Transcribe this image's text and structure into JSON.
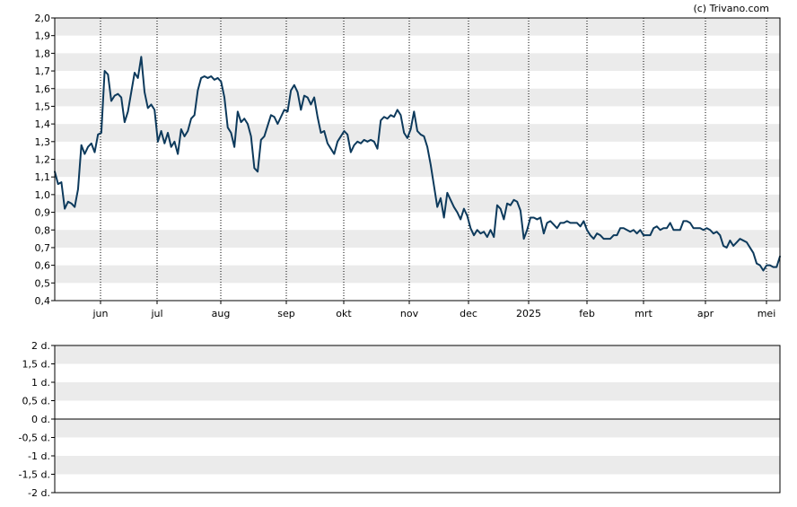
{
  "credit": "(c) Trivano.com",
  "colors": {
    "line": "#0d3a5c",
    "band": "#ebebeb",
    "grid": "#000000",
    "frame": "#000000"
  },
  "chart_data": [
    {
      "type": "line",
      "ylim": [
        0.4,
        2.0
      ],
      "y_ticks": [
        "2,0",
        "1,9",
        "1,8",
        "1,7",
        "1,6",
        "1,5",
        "1,4",
        "1,3",
        "1,2",
        "1,1",
        "1,0",
        "0,9",
        "0,8",
        "0,7",
        "0,6",
        "0,5",
        "0,4"
      ],
      "x_ticks": [
        "jun",
        "jul",
        "aug",
        "sep",
        "okt",
        "nov",
        "dec",
        "2025",
        "feb",
        "mrt",
        "apr",
        "mei"
      ],
      "grid": "vertical dotted at month starts, horizontal alternating bands",
      "series": [
        {
          "values": [
            1.13,
            1.06,
            1.07,
            0.92,
            0.96,
            0.95,
            0.93,
            1.03,
            1.28,
            1.23,
            1.27,
            1.29,
            1.24,
            1.34,
            1.35,
            1.7,
            1.68,
            1.53,
            1.56,
            1.57,
            1.55,
            1.41,
            1.47,
            1.58,
            1.69,
            1.66,
            1.78,
            1.58,
            1.49,
            1.51,
            1.48,
            1.3,
            1.36,
            1.29,
            1.35,
            1.27,
            1.3,
            1.23,
            1.37,
            1.33,
            1.36,
            1.43,
            1.45,
            1.59,
            1.66,
            1.67,
            1.66,
            1.67,
            1.65,
            1.66,
            1.64,
            1.55,
            1.38,
            1.35,
            1.27,
            1.47,
            1.41,
            1.43,
            1.4,
            1.33,
            1.15,
            1.13,
            1.31,
            1.33,
            1.39,
            1.45,
            1.44,
            1.4,
            1.44,
            1.48,
            1.47,
            1.59,
            1.62,
            1.58,
            1.48,
            1.56,
            1.55,
            1.51,
            1.55,
            1.44,
            1.35,
            1.36,
            1.29,
            1.26,
            1.23,
            1.3,
            1.33,
            1.36,
            1.34,
            1.24,
            1.28,
            1.3,
            1.29,
            1.31,
            1.3,
            1.31,
            1.3,
            1.26,
            1.42,
            1.44,
            1.43,
            1.45,
            1.44,
            1.48,
            1.45,
            1.35,
            1.32,
            1.37,
            1.47,
            1.36,
            1.34,
            1.33,
            1.27,
            1.17,
            1.05,
            0.93,
            0.98,
            0.87,
            1.01,
            0.97,
            0.93,
            0.9,
            0.86,
            0.92,
            0.88,
            0.81,
            0.77,
            0.8,
            0.78,
            0.79,
            0.76,
            0.8,
            0.76,
            0.94,
            0.92,
            0.86,
            0.95,
            0.94,
            0.97,
            0.96,
            0.91,
            0.75,
            0.8,
            0.87,
            0.87,
            0.86,
            0.87,
            0.78,
            0.84,
            0.85,
            0.83,
            0.81,
            0.84,
            0.84,
            0.85,
            0.84,
            0.84,
            0.84,
            0.82,
            0.85,
            0.8,
            0.77,
            0.75,
            0.78,
            0.77,
            0.75,
            0.75,
            0.75,
            0.77,
            0.77,
            0.81,
            0.81,
            0.8,
            0.79,
            0.8,
            0.78,
            0.8,
            0.77,
            0.77,
            0.77,
            0.81,
            0.82,
            0.8,
            0.81,
            0.81,
            0.84,
            0.8,
            0.8,
            0.8,
            0.85,
            0.85,
            0.84,
            0.81,
            0.81,
            0.81,
            0.8,
            0.81,
            0.8,
            0.78,
            0.79,
            0.77,
            0.71,
            0.7,
            0.74,
            0.71,
            0.73,
            0.75,
            0.74,
            0.73,
            0.7,
            0.67,
            0.61,
            0.6,
            0.57,
            0.6,
            0.6,
            0.59,
            0.59,
            0.65
          ]
        }
      ]
    },
    {
      "type": "line",
      "ylim": [
        -2,
        2
      ],
      "y_ticks": [
        "2 d.",
        "1,5 d.",
        "1 d.",
        "0,5 d.",
        "0 d.",
        "-0,5 d.",
        "-1 d.",
        "-1,5 d.",
        "-2 d."
      ],
      "zero_line": true,
      "grid": "horizontal alternating bands"
    }
  ]
}
